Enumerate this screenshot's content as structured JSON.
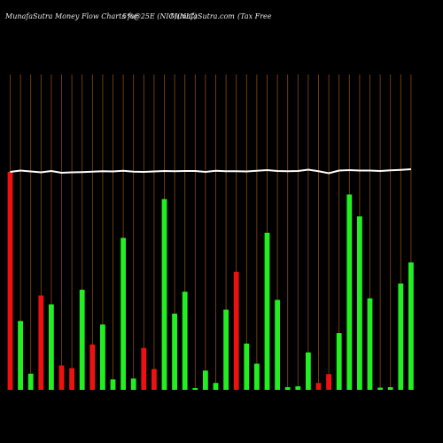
{
  "header": {
    "site_left": "MunafaSutra  Money Flow  Charts for",
    "ticker": "5%@25E (NIC)(NIC)",
    "site_right": "MunafaSutra.com",
    "company": "(Tax Free"
  },
  "colors": {
    "up": "#22ee22",
    "down": "#ee1111",
    "grid": "#8a4a10",
    "line": "#ffffff",
    "bg": "#000000"
  },
  "chart_data": {
    "type": "bar",
    "title": "",
    "y_range": [
      0,
      100
    ],
    "categories": [
      "",
      "",
      "",
      "",
      "",
      "",
      "",
      "",
      "",
      "",
      "",
      "",
      "",
      "",
      "",
      "",
      "",
      "",
      "",
      "",
      "",
      "",
      "",
      "",
      "",
      "",
      "",
      "",
      "",
      "",
      "",
      "",
      "",
      "",
      "",
      "",
      "",
      "",
      ""
    ],
    "bar_values": [
      98.4,
      31.1,
      7.3,
      42.6,
      38.6,
      11.0,
      9.8,
      45.2,
      20.5,
      29.5,
      4.7,
      68.6,
      5.1,
      18.9,
      9.4,
      86.1,
      34.4,
      44.3,
      0.8,
      8.7,
      3.1,
      36.2,
      53.3,
      20.9,
      11.8,
      70.9,
      40.6,
      1.2,
      1.6,
      16.9,
      3.1,
      7.1,
      25.6,
      88.2,
      78.3,
      41.3,
      1.0,
      1.2,
      48.0,
      57.5
    ],
    "bar_directions": [
      "down",
      "up",
      "up",
      "down",
      "up",
      "down",
      "down",
      "up",
      "down",
      "up",
      "up",
      "up",
      "up",
      "down",
      "down",
      "up",
      "up",
      "up",
      "up",
      "up",
      "up",
      "up",
      "down",
      "up",
      "up",
      "up",
      "up",
      "up",
      "up",
      "up",
      "down",
      "down",
      "up",
      "up",
      "up",
      "up",
      "up",
      "up",
      "up",
      "up"
    ],
    "line_values": [
      98.4,
      99.0,
      98.6,
      98.2,
      98.8,
      98.0,
      98.2,
      98.3,
      98.5,
      98.7,
      98.6,
      98.9,
      98.5,
      98.4,
      98.6,
      98.8,
      98.7,
      98.8,
      98.8,
      98.4,
      98.9,
      98.7,
      98.7,
      98.6,
      98.9,
      99.2,
      98.8,
      98.7,
      98.8,
      99.4,
      98.7,
      97.8,
      99.0,
      99.2,
      99.0,
      99.0,
      98.8,
      99.1,
      99.3,
      99.6
    ]
  }
}
